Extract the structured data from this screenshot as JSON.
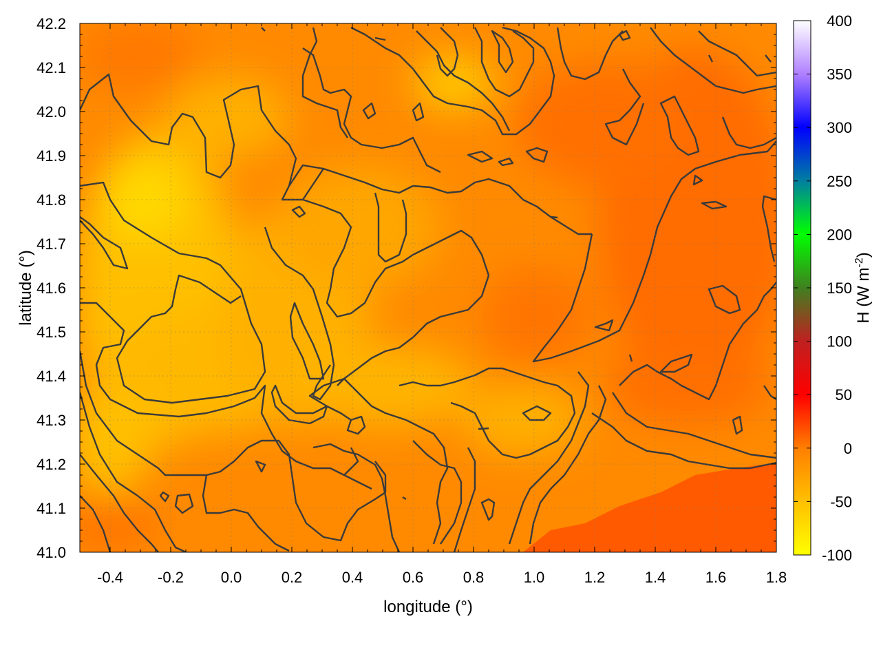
{
  "chart_data": {
    "type": "heatmap",
    "title": "",
    "xlabel": "longitude (°)",
    "ylabel": "latitude (°)",
    "xlim": [
      -0.5,
      1.8
    ],
    "ylim": [
      41.0,
      42.2
    ],
    "x_ticks": [
      "-0.4",
      "-0.2",
      "0.0",
      "0.2",
      "0.4",
      "0.6",
      "0.8",
      "1.0",
      "1.2",
      "1.4",
      "1.6",
      "1.8"
    ],
    "x_tick_values": [
      -0.4,
      -0.2,
      0.0,
      0.2,
      0.4,
      0.6,
      0.8,
      1.0,
      1.2,
      1.4,
      1.6,
      1.8
    ],
    "y_ticks": [
      "41.0",
      "41.1",
      "41.2",
      "41.3",
      "41.4",
      "41.5",
      "41.6",
      "41.7",
      "41.8",
      "41.9",
      "42.0",
      "42.1",
      "42.2"
    ],
    "y_tick_values": [
      41.0,
      41.1,
      41.2,
      41.3,
      41.4,
      41.5,
      41.6,
      41.7,
      41.8,
      41.9,
      42.0,
      42.1,
      42.2
    ],
    "grid": true,
    "colorbar": {
      "label": "H (W m-2)",
      "label_main": "H (W m",
      "label_sup": "-2",
      "label_close": ")",
      "range": [
        -100,
        400
      ],
      "ticks": [
        "400",
        "350",
        "300",
        "250",
        "200",
        "150",
        "100",
        "50",
        "0",
        "-50",
        "-100"
      ],
      "tick_values": [
        400,
        350,
        300,
        250,
        200,
        150,
        100,
        50,
        0,
        -50,
        -100
      ],
      "colors": [
        {
          "value": -100,
          "color": "#ffff00"
        },
        {
          "value": -50,
          "color": "#ffc000"
        },
        {
          "value": 0,
          "color": "#ff7f00"
        },
        {
          "value": 50,
          "color": "#ff0000"
        },
        {
          "value": 100,
          "color": "#c02020"
        },
        {
          "value": 150,
          "color": "#408020"
        },
        {
          "value": 200,
          "color": "#00ff00"
        },
        {
          "value": 250,
          "color": "#0080a0"
        },
        {
          "value": 300,
          "color": "#0000ff"
        },
        {
          "value": 350,
          "color": "#b080ff"
        },
        {
          "value": 400,
          "color": "#ffffff"
        }
      ]
    },
    "field_colors": {
      "low": "#ffd000",
      "mid": "#ffa000",
      "high": "#ff6a00",
      "coast": "#ff5800",
      "contour": "#3a3a3a"
    }
  }
}
